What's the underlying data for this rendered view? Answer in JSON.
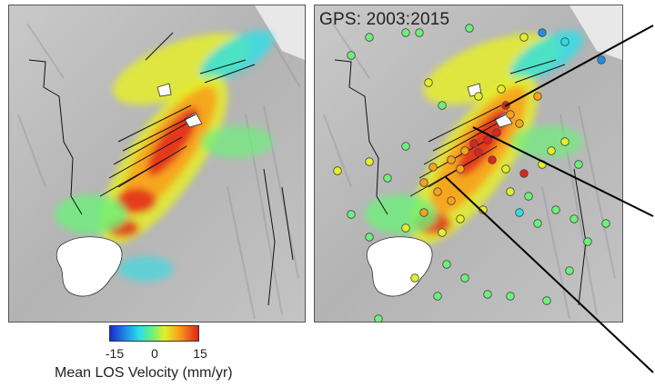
{
  "gps_label": "GPS: 2003:2015",
  "colorbar": {
    "title": "Mean LOS Velocity (mm/yr)",
    "ticks": [
      "-15",
      "0",
      "15"
    ],
    "tick_values": [
      -15,
      0,
      15
    ],
    "min": -15,
    "max": 15,
    "colors": [
      "#1a2bd1",
      "#1e8fe8",
      "#29e0e8",
      "#6df07a",
      "#e5ef28",
      "#f9a11a",
      "#e0231c"
    ]
  },
  "map_colors": {
    "terrain": "#bdbdbd",
    "lake": "#ffffff",
    "faults": "#111111",
    "gps_outline": "#444444"
  }
}
